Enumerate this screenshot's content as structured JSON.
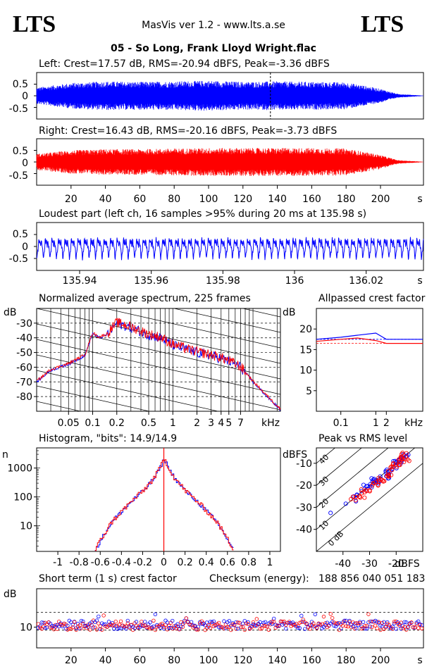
{
  "header": {
    "logo_left": "LTS",
    "logo_right": "LTS",
    "app_title": "MasVis ver 1.2 - www.lts.a.se",
    "file_title": "05 - So Long, Frank Lloyd Wright.flac"
  },
  "colors": {
    "left": "#0000ff",
    "right": "#ff0000",
    "grid": "#000000"
  },
  "charts": {
    "left_wave": {
      "title": "Left: Crest=17.57 dB, RMS=-20.94 dBFS, Peak=-3.36 dBFS",
      "yticks": [
        "0.5",
        "0",
        "-0.5"
      ]
    },
    "right_wave": {
      "title": "Right: Crest=16.43 dB, RMS=-20.16 dBFS, Peak=-3.73 dBFS",
      "yticks": [
        "0.5",
        "0",
        "-0.5"
      ],
      "xticks": [
        "20",
        "40",
        "60",
        "80",
        "100",
        "120",
        "140",
        "160",
        "180",
        "200"
      ],
      "xunit": "s"
    },
    "loudest": {
      "title": "Loudest part (left  ch, 16 samples >95% during 20 ms at 135.98 s)",
      "yticks": [
        "0.5",
        "0",
        "-0.5"
      ],
      "xticks": [
        "135.94",
        "135.96",
        "135.98",
        "136",
        "136.02"
      ],
      "xunit": "s"
    },
    "spectrum": {
      "title": "Normalized average spectrum, 225 frames",
      "yunit": "dB",
      "yticks": [
        "-30",
        "-40",
        "-50",
        "-60",
        "-70",
        "-80"
      ],
      "xticks": [
        "0.05",
        "0.1",
        "0.2",
        "0.5",
        "1",
        "2",
        "3",
        "4",
        "5",
        "7"
      ],
      "xunit": "kHz"
    },
    "allpass": {
      "title": "Allpassed crest factor",
      "yunit": "dB",
      "yticks": [
        "20",
        "15",
        "10",
        "5"
      ],
      "xticks": [
        "0.1",
        "1",
        "2"
      ],
      "xunit": "kHz"
    },
    "histogram": {
      "title": "Histogram, \"bits\": 14.9/14.9",
      "yunit": "n",
      "yticks": [
        "1000",
        "100",
        "10"
      ],
      "xticks": [
        "-1",
        "-0.8",
        "-0.6",
        "-0.4",
        "-0.2",
        "0",
        "0.2",
        "0.4",
        "0.6",
        "0.8",
        "1"
      ]
    },
    "peak_rms": {
      "title": "Peak vs RMS level",
      "yunit": "dBFS",
      "yticks": [
        "-10",
        "-20",
        "-30",
        "-40"
      ],
      "xticks": [
        "-40",
        "-30",
        "-20"
      ],
      "xunit": "dBFS",
      "diag_labels": [
        "40",
        "30",
        "20",
        "10",
        "0 dB"
      ]
    },
    "crest": {
      "title": "Short term (1 s) crest factor",
      "checksum_label": "Checksum (energy):",
      "checksum_value": "188 856 040 051 183",
      "yunit": "dB",
      "yticks": [
        "10"
      ],
      "xticks": [
        "20",
        "40",
        "60",
        "80",
        "100",
        "120",
        "140",
        "160",
        "180",
        "200"
      ],
      "xunit": "s"
    }
  },
  "chart_data": [
    {
      "type": "area",
      "title": "Left: Crest=17.57 dB, RMS=-20.94 dBFS, Peak=-3.36 dBFS",
      "xlabel": "s",
      "xlim": [
        0,
        225
      ],
      "ylim": [
        -1,
        1
      ],
      "marker_x": 135.98,
      "envelope_x": [
        0,
        20,
        40,
        60,
        80,
        100,
        120,
        140,
        160,
        180,
        200,
        210,
        225
      ],
      "envelope": [
        0.35,
        0.55,
        0.62,
        0.6,
        0.62,
        0.65,
        0.6,
        0.62,
        0.6,
        0.58,
        0.3,
        0.08,
        0.01
      ]
    },
    {
      "type": "area",
      "title": "Right: Crest=16.43 dB, RMS=-20.16 dBFS, Peak=-3.73 dBFS",
      "xlabel": "s",
      "xlim": [
        0,
        225
      ],
      "ylim": [
        -1,
        1
      ],
      "envelope_x": [
        0,
        20,
        40,
        60,
        80,
        100,
        120,
        140,
        160,
        180,
        200,
        210,
        225
      ],
      "envelope": [
        0.35,
        0.5,
        0.55,
        0.55,
        0.58,
        0.6,
        0.6,
        0.6,
        0.6,
        0.58,
        0.3,
        0.08,
        0.01
      ]
    },
    {
      "type": "line",
      "title": "Loudest part (left  ch, 16 samples >95% during 20 ms at 135.98 s)",
      "xlabel": "s",
      "xlim": [
        135.928,
        136.036
      ],
      "ylim": [
        -1,
        1
      ],
      "cycle_period": 0.00182,
      "amplitude": 0.45
    },
    {
      "type": "line",
      "title": "Normalized average spectrum, 225 frames",
      "xlabel": "kHz",
      "ylabel": "dB",
      "xlim": [
        0.02,
        22
      ],
      "ylim": [
        -90,
        -20
      ],
      "series": [
        {
          "x": [
            0.02,
            0.03,
            0.05,
            0.08,
            0.1,
            0.12,
            0.15,
            0.2,
            0.3,
            0.5,
            0.7,
            1,
            1.5,
            2,
            3,
            4,
            5,
            7,
            10,
            15,
            22
          ],
          "values": [
            -70,
            -62,
            -58,
            -52,
            -37,
            -40,
            -38,
            -30,
            -33,
            -38,
            -40,
            -45,
            -48,
            -50,
            -52,
            -54,
            -56,
            -60,
            -70,
            -80,
            -89
          ]
        }
      ]
    },
    {
      "type": "line",
      "title": "Allpassed crest factor",
      "xlabel": "kHz",
      "ylabel": "dB",
      "xlim": [
        0.02,
        22
      ],
      "ylim": [
        0,
        25
      ],
      "series": [
        {
          "x": [
            0.02,
            0.1,
            0.3,
            1,
            2,
            22
          ],
          "values": [
            17.5,
            18,
            18.5,
            19,
            17.5,
            17.5
          ]
        },
        {
          "x": [
            0.02,
            0.1,
            0.3,
            1,
            2,
            22
          ],
          "values": [
            17,
            17.5,
            17.8,
            17.2,
            16.5,
            16.5
          ]
        }
      ],
      "reference": [
        17.5,
        16.5
      ]
    },
    {
      "type": "line",
      "title": "Histogram, \"bits\": 14.9/14.9",
      "ylabel": "n",
      "xlim": [
        -1.2,
        1.1
      ],
      "ylim": [
        1.3,
        5000
      ],
      "series": [
        {
          "x": [
            -0.65,
            -0.6,
            -0.5,
            -0.4,
            -0.3,
            -0.2,
            -0.1,
            -0.05,
            0,
            0.05,
            0.1,
            0.2,
            0.3,
            0.4,
            0.5,
            0.6,
            0.65
          ],
          "values": [
            1.4,
            3,
            12,
            30,
            70,
            150,
            400,
            800,
            2000,
            800,
            400,
            150,
            70,
            30,
            12,
            3,
            1.4
          ]
        }
      ]
    },
    {
      "type": "scatter",
      "title": "Peak vs RMS level",
      "xlabel": "dBFS",
      "ylabel": "dBFS",
      "xlim": [
        -50,
        -10
      ],
      "ylim": [
        -50,
        -3
      ],
      "series": [
        {
          "x": [
            -45,
            -40,
            -35,
            -30,
            -25,
            -22,
            -20,
            -18,
            -17,
            -16
          ],
          "values": [
            -35,
            -28,
            -25,
            -20,
            -17,
            -13,
            -10,
            -8,
            -7,
            -5
          ]
        },
        {
          "x": [
            -45,
            -40,
            -35,
            -30,
            -25,
            -22,
            -20,
            -18,
            -17,
            -16
          ],
          "values": [
            -36,
            -29,
            -26,
            -21,
            -18,
            -14,
            -11,
            -9,
            -8,
            -6
          ]
        }
      ]
    },
    {
      "type": "scatter",
      "title": "Short term (1 s) crest factor",
      "xlabel": "s",
      "ylabel": "dB",
      "xlim": [
        0,
        225
      ],
      "ylim": [
        3,
        23
      ],
      "series": [
        {
          "values_mean": 11,
          "values_range": [
            9,
            14
          ]
        }
      ],
      "reference": [
        15,
        9
      ]
    }
  ]
}
